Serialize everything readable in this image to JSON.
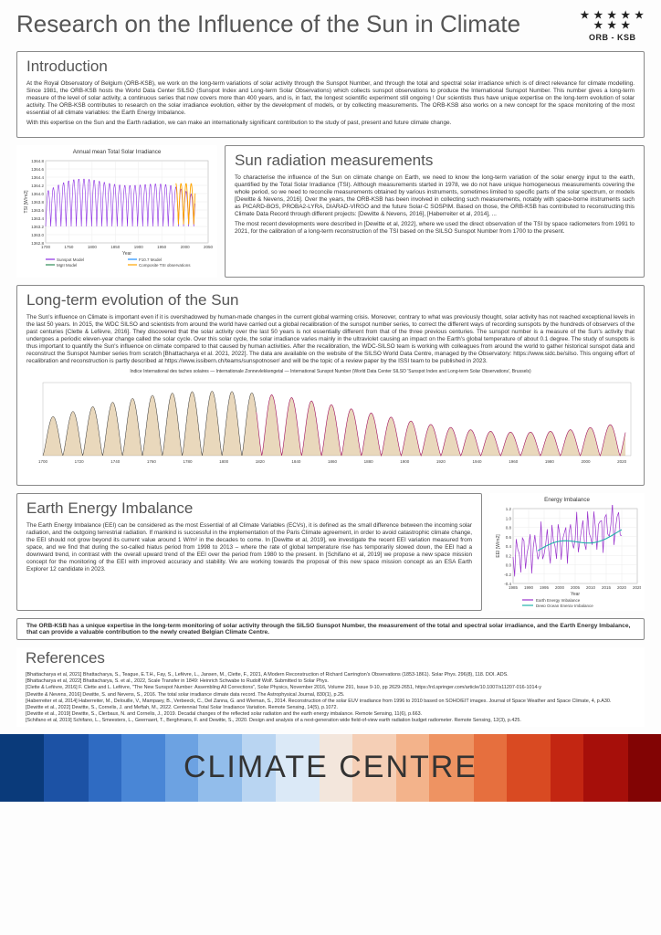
{
  "header": {
    "title": "Research on the Influence of the Sun in Climate",
    "org": "ORB - KSB"
  },
  "intro": {
    "heading": "Introduction",
    "p1": "At the Royal Observatory of Belgium (ORB-KSB), we work on the long-term variations of solar activity through the Sunspot Number, and through the total and spectral solar irradiance which is of direct relevance for climate modelling. Since 1981, the ORB-KSB hosts the World Data Center SILSO (Sunspot Index and Long-term Solar Observations) which collects sunspot observations to produce the International Sunspot Number. This number gives a long-term measure of the level of solar activity, a continuous series that now covers more than 400 years, and is, in fact, the longest scientific experiment still ongoing ! Our scientists thus have unique expertise on the long-term evolution of solar activity. The ORB-KSB contributes to research on the solar irradiance evolution, either by the development of models, or by collecting measurements. The ORB-KSB also works on a new concept for the space monitoring of the most essential of all climate variables: the Earth Energy Imbalance.",
    "p2": "With this expertise on the Sun and the Earth radiation, we can make an internationally significant contribution to the study of past, present and future climate change."
  },
  "tsi_chart": {
    "title": "Annual mean Total Solar Irradiance",
    "ylabel": "TSI [W/m2]",
    "xlabel": "Year",
    "xlim": [
      1700,
      2050
    ],
    "xtick_step": 50,
    "ylim": [
      1362.8,
      1364.8
    ],
    "ytick_step": 0.2,
    "series": [
      {
        "name": "Sunspot Model",
        "color": "#8a2be2"
      },
      {
        "name": "F10.7 Model",
        "color": "#1e90ff"
      },
      {
        "name": "MgII Model",
        "color": "#2e8b57"
      },
      {
        "name": "Composite TSI observations",
        "color": "#ffa500"
      }
    ],
    "grid_color": "#e8e8e8",
    "background": "#ffffff"
  },
  "sunrad": {
    "heading": "Sun radiation measurements",
    "p1": "To characterise the influence of the Sun on climate change on Earth, we need to know the long-term variation of the solar energy input to the earth, quantified by the Total Solar Irradiance (TSI). Although measurements started in 1978, we do not have unique homogeneous measurements covering the whole period, so we need to reconcile measurements obtained by various instruments, sometimes limited to specific parts of the solar spectrum, or models [Dewitte & Nevens, 2016]. Over the years, the ORB-KSB has been involved in collecting such measurements, notably with space-borne instruments such as PICARD-BOS, PROBA2-LYRA, DIARAD-VIRGO and the future Solar-C SOSPIM. Based on those, the ORB-KSB has contributed to reconstructing this Climate Data Record through different projects: [Dewitte & Nevens, 2016], [Haberreiter et al, 2014], ...",
    "p2": "The most recent developments were described in [Dewitte et al, 2022], where we used the direct observation of the TSI by space radiometers from 1991 to 2021, for the calibration of a long-term reconstruction of the TSI based on the SILSO Sunspot Number from 1700 to the present."
  },
  "longterm": {
    "heading": "Long-term evolution of the Sun",
    "p1": "The Sun's influence on Climate is important even if it is overshadowed by human-made changes in the current global warming crisis. Moreover, contrary to what was previously thought, solar activity has not reached exceptional levels in the last 50 years. In 2015, the WDC SILSO and scientists from around the world have carried out a global recalibration of the sunspot number series, to correct the different ways of recording sunspots by the hundreds of observers of the past centuries [Clette & Lefèvre, 2016]. They discovered that the solar activity over the last 50 years is not essentially different from that of the three previous centuries. The sunspot number is a measure of the Sun's activity that undergoes a periodic eleven-year change called the solar cycle. Over this solar cycle, the solar irradiance varies mainly in the ultraviolet causing an impact on the Earth's global temperature of about 0.1 degree. The study of sunspots is thus important to quantify the Sun's influence on climate compared to that caused by human activities. After the recalibration, the WDC-SILSO team is working with colleagues from around the world to gather historical sunspot data and reconstruct the Sunspot Number series from scratch [Bhattacharya et al. 2021, 2022]. The data are available on the website of the SILSO World Data Centre, managed by the Observatory: https://www.sidc.be/silso. This ongoing effort of recalibration and reconstruction is partly described at https://www.issibern.ch/teams/sunspotnoser/ and will be the topic of a review paper by the ISSI team to be published in 2023.",
    "chart_title": "Indice International des taches solaires — Internationale Zonnevlekkengetal — International Sunspot Number  (World Data Center SILSO 'Sunspot Index and Long-term Solar Observations', Brussels)",
    "chart_colors": {
      "old": "#c09040",
      "recent": "#a01060",
      "annotation": "#303030"
    },
    "chart_xlim": [
      1700,
      2025
    ]
  },
  "eei": {
    "heading": "Earth Energy Imbalance",
    "p1": "The Earth Energy Imbalance (EEI) can be considered as the most Essential of all Climate Variables (ECVs), it is defined as the small difference between the incoming solar radiation, and the outgoing terrestrial radiation. If mankind is successful in the implementation of the Paris Climate agreement, in order to avoid catastrophic climate change, the EEI should not grow beyond its current value around 1 W/m² in the decades to come. In [Dewitte et al, 2019], we investigate the recent EEI variation measured from space, and we find that during the so-called hiatus period from 1998 to 2013 – where the rate of global temperature rise has temporarily slowed down, the EEI had a downward trend, in contrast with the overall upward trend of the EEI over the period from 1980 to the present. In [Schifano et al, 2019] we propose a new space mission concept for the monitoring of the EEI with improved accuracy and stability. We are working towards the proposal of this new space mission concept as an ESA Earth Explorer 12 candidate in 2023.",
    "chart": {
      "title": "Energy Imbalance",
      "ylabel": "EEI [W/m2]",
      "xlabel": "Year",
      "xlim": [
        1985,
        2025
      ],
      "xtick_step": 5,
      "ylim": [
        -0.4,
        1.2
      ],
      "ytick_step": 0.2,
      "series": [
        {
          "name": "Earth Energy Imbalance",
          "color": "#9932cc"
        },
        {
          "name": "Deep Ocean Energy Imbalance",
          "color": "#20b2aa"
        }
      ],
      "grid_color": "#e8e8e8"
    }
  },
  "conclusion": "The ORB-KSB has a unique expertise in the long-term monitoring of solar activity through the SILSO Sunspot Number, the measurement of the total and spectral solar irradiance, and the Earth Energy Imbalance, that can provide a valuable contribution to the newly created Belgian Climate Centre.",
  "refs": {
    "heading": "References",
    "items": [
      "[Bhattacharya et al, 2021] Bhattacharya, S., Teague, E.T.H., Fay, S., Lefèvre, L., Jansen, M., Clette, F., 2021, A Modern Reconstruction of Richard Carrington's Observations (1853-1861). Solar Phys. 296(8), 118. DOI. ADS.",
      "[Bhattacharya et al, 2022] Bhattacharya, S. et al., 2022, Scale Transfer in 1849: Heinrich Schwabe to Rudolf Wolf. Submitted to Solar Phys.",
      "[Clette & Lefèvre, 2016] F. Clette and L. Lefèvre, \"The New Sunspot Number: Assembling All Corrections\", Solar Physics, November 2016, Volume 291, Issue 9-10, pp 2629-2651, https://rd.springer.com/article/10.1007/s11207-016-1014-y",
      "[Dewitte & Nevens, 2016] Dewitte, S. and Nevens, S., 2016. The total solar irradiance climate data record. The Astrophysical Journal, 830(1), p.25.",
      "[Haberreiter et al, 2014] Haberreiter, M., Delouille, V., Mampaey, B., Verbeeck, C., Del Zanna, G. and Wieman, S., 2014. Reconstruction of the solar EUV irradiance from 1996 to 2010 based on SOHO/EIT images. Journal of Space Weather and Space Climate, 4, p.A30.",
      "[Dewitte et al., 2022] Dewitte, S., Cornelis, J. and Meftah, M., 2022. Centennial Total Solar Irradiance Variation. Remote Sensing, 14(5), p.1072.",
      "[Dewitte et al., 2019] Dewitte, S., Clerbaux, N. and Cornelis, J., 2019. Decadal changes of the reflected solar radiation and the earth energy imbalance. Remote Sensing, 11(6), p.663.",
      "[Schifano et al, 2019] Schifano, L., Smeesters, L., Geernaert, T., Berghmans, F. and Dewitte, S., 2020. Design and analysis of a next-generation wide field-of-view earth radiation budget radiometer. Remote Sensing, 12(3), p.425."
    ]
  },
  "footer": {
    "text": "CLIMATE CENTRE",
    "stripe_colors": [
      "#0a3a7a",
      "#1c52a5",
      "#2f6bc2",
      "#4986d6",
      "#6ca2e2",
      "#92bdeb",
      "#b9d5f2",
      "#dbe9f7",
      "#f3e6dc",
      "#f5cfb6",
      "#f3b38b",
      "#ee9362",
      "#e66f3e",
      "#d94a22",
      "#c32612",
      "#a60f0a",
      "#820404"
    ]
  }
}
